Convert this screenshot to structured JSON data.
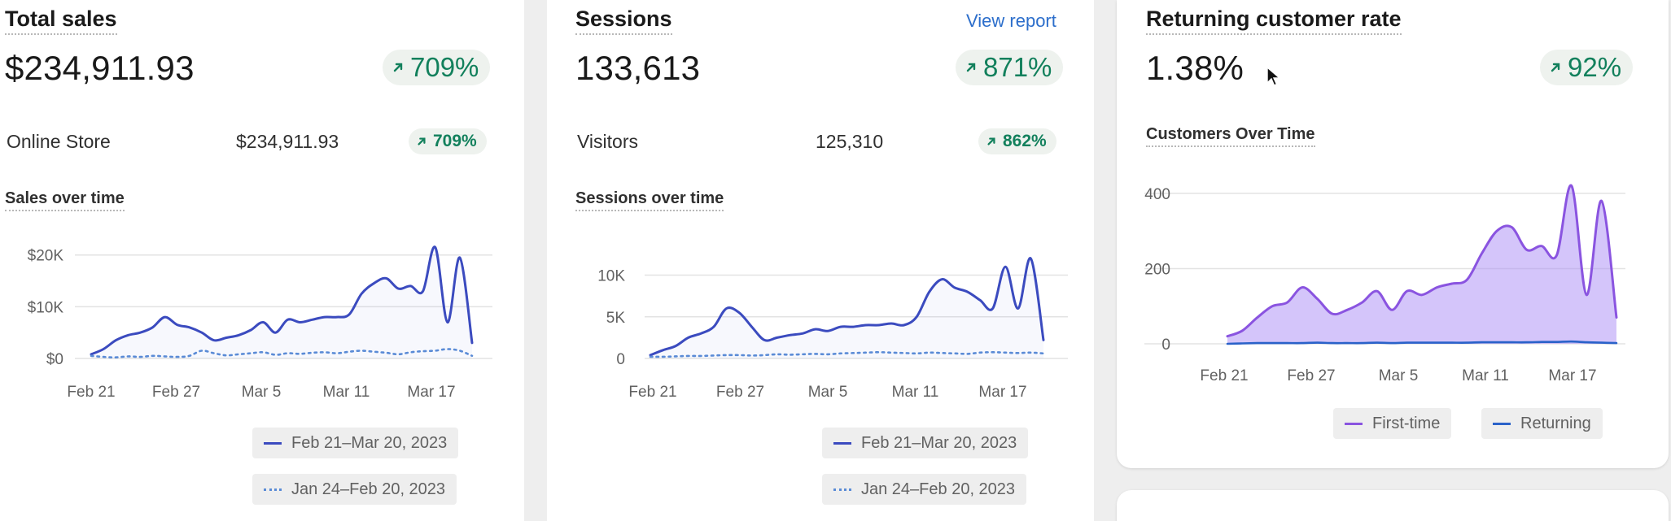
{
  "colors": {
    "positive": "#12805c",
    "series_current": "#3b4bbf",
    "series_previous": "#5a8bd6",
    "first_time": "#8a54e0",
    "returning": "#2a62c9",
    "link": "#2c6ecb"
  },
  "icons": {
    "trend": "arrow-up-right-icon",
    "cursor": "mouse-pointer-icon"
  },
  "sales": {
    "title": "Total sales",
    "value": "$234,911.93",
    "change": "709%",
    "row_label": "Online Store",
    "row_value": "$234,911.93",
    "row_change": "709%",
    "chart_title": "Sales over time",
    "legend": [
      "Feb 21–Mar 20, 2023",
      "Jan 24–Feb 20, 2023"
    ]
  },
  "sessions": {
    "title": "Sessions",
    "link": "View report",
    "value": "133,613",
    "change": "871%",
    "row_label": "Visitors",
    "row_value": "125,310",
    "row_change": "862%",
    "chart_title": "Sessions over time",
    "legend": [
      "Feb 21–Mar 20, 2023",
      "Jan 24–Feb 20, 2023"
    ]
  },
  "returning": {
    "title": "Returning customer rate",
    "value": "1.38%",
    "change": "92%",
    "chart_title": "Customers Over Time",
    "legend": [
      "First-time",
      "Returning"
    ]
  },
  "chart_data": [
    {
      "type": "line",
      "title": "Sales over time",
      "x_ticks": [
        "Feb 21",
        "Feb 27",
        "Mar 5",
        "Mar 11",
        "Mar 17"
      ],
      "y_ticks": [
        "$0",
        "$10K",
        "$20K"
      ],
      "ylim": [
        0,
        22000
      ],
      "series": [
        {
          "name": "Feb 21–Mar 20, 2023",
          "style": "solid",
          "values": [
            800,
            1800,
            3500,
            4500,
            5000,
            6000,
            8000,
            6500,
            6000,
            5000,
            3500,
            4000,
            4500,
            5500,
            7000,
            5000,
            7500,
            7000,
            7500,
            8000,
            8000,
            8500,
            12500,
            14500,
            15500,
            13500,
            14000,
            13000,
            21500,
            7000,
            19500,
            3000
          ]
        },
        {
          "name": "Jan 24–Feb 20, 2023",
          "style": "dotted",
          "values": [
            500,
            300,
            200,
            400,
            300,
            500,
            400,
            300,
            500,
            1500,
            1000,
            600,
            800,
            1000,
            1200,
            700,
            1000,
            900,
            1100,
            1200,
            1000,
            1300,
            1500,
            1300,
            1100,
            800,
            1200,
            1400,
            1500,
            1800,
            1500,
            500
          ]
        }
      ]
    },
    {
      "type": "line",
      "title": "Sessions over time",
      "x_ticks": [
        "Feb 21",
        "Feb 27",
        "Mar 5",
        "Mar 11",
        "Mar 17"
      ],
      "y_ticks": [
        "0",
        "5K",
        "10K"
      ],
      "ylim": [
        0,
        12000
      ],
      "series": [
        {
          "name": "Feb 21–Mar 20, 2023",
          "style": "solid",
          "values": [
            400,
            1000,
            1500,
            2500,
            3000,
            3800,
            6000,
            5500,
            3800,
            2200,
            2500,
            2800,
            3000,
            3500,
            3300,
            3800,
            3800,
            4000,
            4000,
            4200,
            4000,
            5000,
            8000,
            9500,
            8500,
            8000,
            7000,
            6000,
            11000,
            6000,
            12000,
            2200
          ]
        },
        {
          "name": "Jan 24–Feb 20, 2023",
          "style": "dotted",
          "values": [
            200,
            200,
            250,
            300,
            300,
            350,
            400,
            400,
            350,
            400,
            500,
            450,
            500,
            550,
            500,
            600,
            650,
            700,
            750,
            700,
            650,
            600,
            700,
            650,
            600,
            550,
            700,
            750,
            700,
            650,
            700,
            600
          ]
        }
      ]
    },
    {
      "type": "area",
      "title": "Customers Over Time",
      "x_ticks": [
        "Feb 21",
        "Feb 27",
        "Mar 5",
        "Mar 11",
        "Mar 17"
      ],
      "y_ticks": [
        "0",
        "200",
        "400"
      ],
      "ylim": [
        0,
        430
      ],
      "series": [
        {
          "name": "First-time",
          "values": [
            20,
            35,
            70,
            100,
            110,
            150,
            120,
            80,
            90,
            110,
            140,
            90,
            140,
            130,
            150,
            160,
            170,
            240,
            300,
            310,
            250,
            260,
            235,
            420,
            130,
            380,
            70
          ]
        },
        {
          "name": "Returning",
          "values": [
            0,
            1,
            2,
            2,
            2,
            2,
            3,
            2,
            2,
            2,
            3,
            2,
            3,
            3,
            3,
            3,
            3,
            4,
            4,
            4,
            4,
            5,
            5,
            6,
            4,
            3,
            2
          ]
        }
      ]
    }
  ]
}
